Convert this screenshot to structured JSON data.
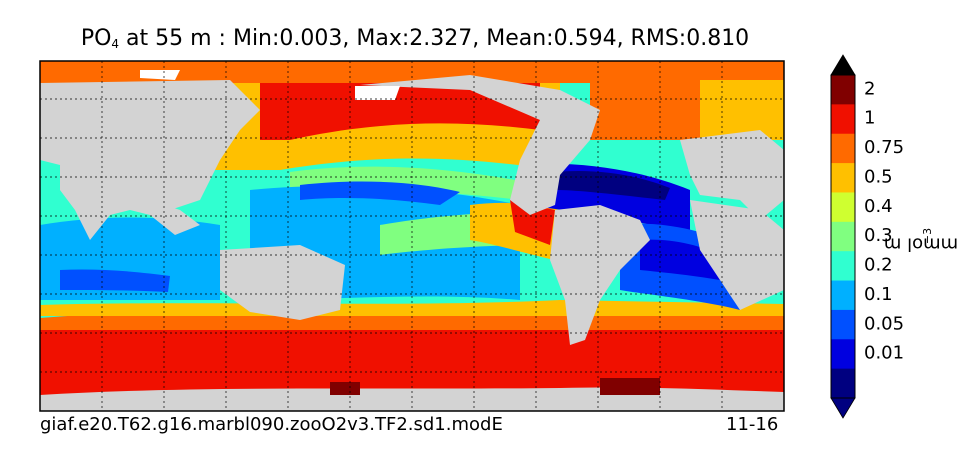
{
  "title": {
    "variable": "PO",
    "subscript": "4",
    "rest": " at 55 m : Min:0.003, Max:2.327, Mean:0.594, RMS:0.810"
  },
  "caption": {
    "left": "giaf.e20.T62.g16.marbl090.zooO2v3.TF2.sd1.modE",
    "right": "11-16"
  },
  "colorbar": {
    "unit_base": "mmol m",
    "unit_exp": "−3",
    "levels": [
      {
        "label": "2",
        "color": "#800000"
      },
      {
        "label": "1",
        "color": "#f01000"
      },
      {
        "label": "0.75",
        "color": "#ff6a00"
      },
      {
        "label": "0.5",
        "color": "#ffc000"
      },
      {
        "label": "0.4",
        "color": "#cfff30"
      },
      {
        "label": "0.3",
        "color": "#80ff80"
      },
      {
        "label": "0.2",
        "color": "#30ffd0"
      },
      {
        "label": "0.1",
        "color": "#00b0ff"
      },
      {
        "label": "0.05",
        "color": "#0050ff"
      },
      {
        "label": "0.01",
        "color": "#0000e0"
      }
    ],
    "under_color": "#000080",
    "over_color": "#000000"
  },
  "colors": {
    "land": "#d3d3d3",
    "ice": "#ffffff"
  }
}
